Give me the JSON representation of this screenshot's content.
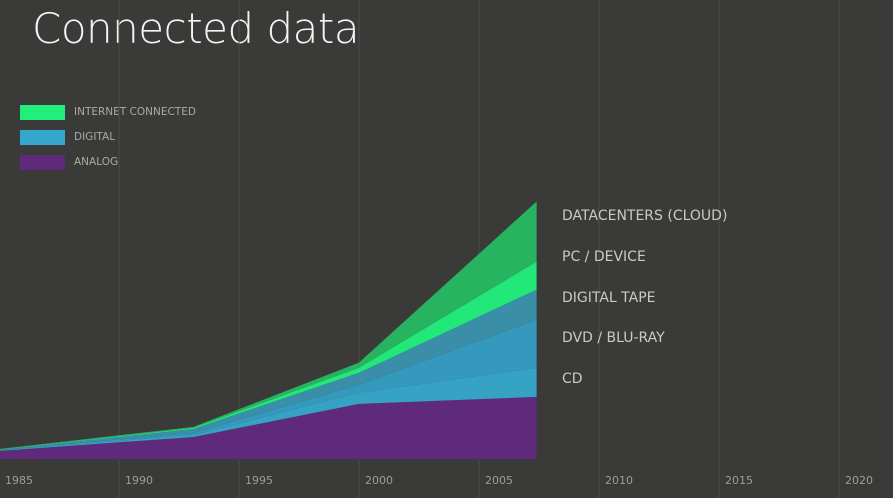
{
  "title": "Connected data",
  "legend": [
    {
      "label": "INTERNET CONNECTED",
      "color": "#22ee7c"
    },
    {
      "label": "DIGITAL",
      "color": "#35a6cc"
    },
    {
      "label": "ANALOG",
      "color": "#5f2a7c"
    }
  ],
  "chart_data": {
    "type": "area",
    "stacked": true,
    "title": "Connected data",
    "x": [
      1985,
      1993.1,
      2000,
      2007.4
    ],
    "xticks": [
      "1985",
      "1990",
      "1995",
      "2000",
      "2005",
      "2010",
      "2015",
      "2020"
    ],
    "xlim": [
      1985,
      2022
    ],
    "grid": true,
    "series": [
      {
        "name": "ANALOG",
        "color": "#5f2a7c",
        "values": [
          9.2,
          25.3,
          63.3,
          71.3
        ]
      },
      {
        "name": "CD",
        "color": "#36a3c4",
        "values": [
          0.6,
          2.3,
          12.7,
          33.4
        ]
      },
      {
        "name": "DVD / BLU-RAY",
        "color": "#3499bd",
        "values": [
          0.6,
          2.3,
          9.2,
          55.2
        ]
      },
      {
        "name": "DIGITAL TAPE",
        "color": "#3a8ea8",
        "values": [
          0.3,
          4.6,
          13.8,
          34.5
        ]
      },
      {
        "name": "PC / DEVICE",
        "color": "#22e87a",
        "values": [
          0.3,
          1.2,
          5.8,
          32.2
        ]
      },
      {
        "name": "DATACENTERS (CLOUD)",
        "color": "#27b35f",
        "values": [
          0.5,
          1.2,
          5.8,
          69.0
        ]
      }
    ],
    "series_labels": [
      "DATACENTERS (CLOUD)",
      "PC / DEVICE",
      "DIGITAL TAPE",
      "DVD / BLU-RAY",
      "CD"
    ],
    "ylim": [
      0,
      300
    ]
  }
}
